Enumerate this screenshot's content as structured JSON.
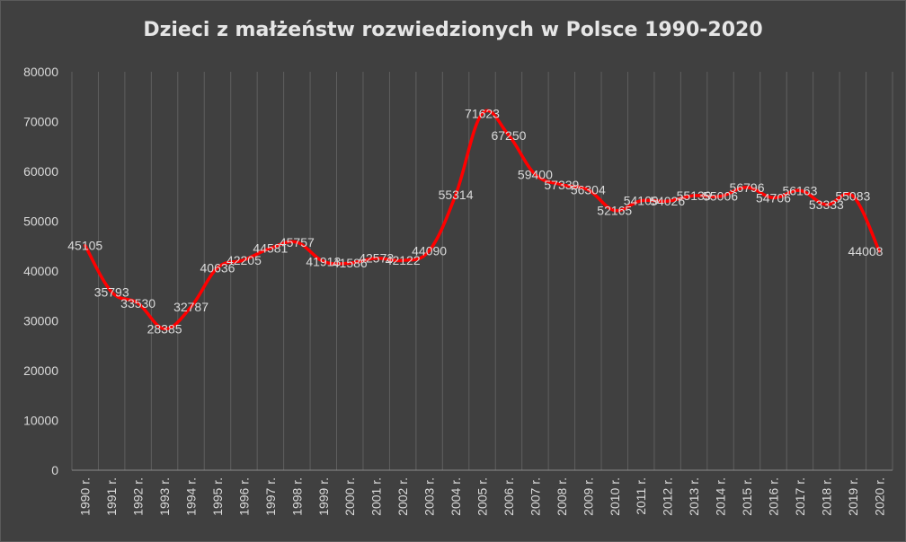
{
  "chart_data": {
    "type": "line",
    "title": "Dzieci z małżeństw rozwiedzionych w Polsce 1990-2020",
    "xlabel": "",
    "ylabel": "",
    "ylim": [
      0,
      80000
    ],
    "y_ticks": [
      "0",
      "10000",
      "20000",
      "30000",
      "40000",
      "50000",
      "60000",
      "70000",
      "80000"
    ],
    "categories": [
      "1990 r.",
      "1991 r.",
      "1992 r.",
      "1993 r.",
      "1994 r.",
      "1995 r.",
      "1996 r.",
      "1997 r.",
      "1998 r.",
      "1999 r.",
      "2000 r.",
      "2001 r.",
      "2002 r.",
      "2003 r.",
      "2004 r.",
      "2005 r.",
      "2006 r.",
      "2007 r.",
      "2008 r.",
      "2009 r.",
      "2010 r.",
      "2011 r.",
      "2012 r.",
      "2013 r.",
      "2014 r.",
      "2015 r.",
      "2016 r.",
      "2017 r.",
      "2018 r.",
      "2019 r.",
      "2020 r."
    ],
    "series": [
      {
        "values": [
          45105,
          35793,
          33530,
          28385,
          32787,
          40636,
          42205,
          44581,
          45757,
          41913,
          41586,
          42573,
          42122,
          44090,
          55314,
          71623,
          67250,
          59400,
          57339,
          56304,
          52165,
          54109,
          54026,
          55139,
          55006,
          56796,
          54706,
          56163,
          53333,
          55083,
          44008
        ]
      }
    ],
    "grid": "vertical",
    "legend": "none",
    "colors": {
      "line": "#ff0000",
      "background": "#404040",
      "grid": "#5f5f5f",
      "text": "#d9d9d9"
    }
  }
}
